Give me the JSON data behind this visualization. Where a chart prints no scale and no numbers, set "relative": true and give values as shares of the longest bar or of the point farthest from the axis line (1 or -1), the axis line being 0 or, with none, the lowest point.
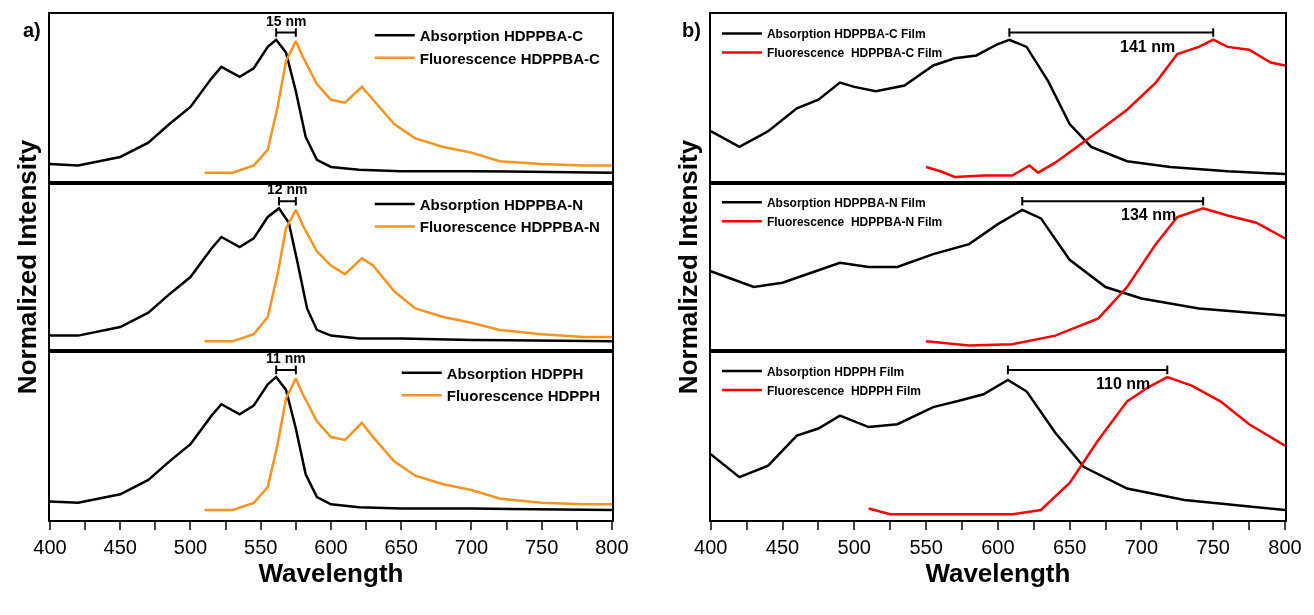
{
  "chart_data": [
    {
      "type": "line",
      "title": "a)",
      "relative": true,
      "xlim": [
        400,
        800
      ],
      "tick_labels": false,
      "legend": "top right",
      "annotations": [
        "15 nm"
      ],
      "series": [
        {
          "name": "Absorption HDPPBA-C",
          "color": "#000000",
          "x": [
            400,
            420,
            450,
            470,
            485,
            500,
            515,
            522,
            535,
            545,
            555,
            561,
            568,
            575,
            582,
            590,
            600,
            620,
            650,
            700,
            800
          ],
          "values": [
            0.13,
            0.12,
            0.18,
            0.28,
            0.41,
            0.53,
            0.73,
            0.81,
            0.74,
            0.8,
            0.95,
            1.0,
            0.91,
            0.64,
            0.32,
            0.16,
            0.11,
            0.09,
            0.08,
            0.08,
            0.07
          ]
        },
        {
          "name": "Fluorescence HDPPBA-C",
          "color": "#f7931e",
          "x": [
            510,
            530,
            545,
            555,
            562,
            568,
            575,
            580,
            590,
            600,
            610,
            622,
            630,
            645,
            660,
            680,
            700,
            720,
            750,
            780,
            800
          ],
          "values": [
            0.07,
            0.07,
            0.12,
            0.23,
            0.53,
            0.85,
            0.99,
            0.88,
            0.69,
            0.58,
            0.56,
            0.67,
            0.58,
            0.41,
            0.31,
            0.25,
            0.21,
            0.15,
            0.13,
            0.12,
            0.12
          ]
        }
      ]
    },
    {
      "type": "line",
      "relative": true,
      "xlim": [
        400,
        800
      ],
      "tick_labels": false,
      "legend": "top right",
      "ylabel": "Normalized Intensity",
      "annotations": [
        "12 nm"
      ],
      "series": [
        {
          "name": "Absorption HDPPBA-N",
          "color": "#000000",
          "x": [
            400,
            420,
            450,
            470,
            485,
            500,
            515,
            522,
            535,
            545,
            555,
            563,
            570,
            576,
            583,
            590,
            600,
            620,
            650,
            700,
            800
          ],
          "values": [
            0.11,
            0.11,
            0.17,
            0.27,
            0.4,
            0.52,
            0.72,
            0.8,
            0.73,
            0.79,
            0.94,
            1.0,
            0.9,
            0.63,
            0.3,
            0.15,
            0.11,
            0.09,
            0.09,
            0.08,
            0.07
          ]
        },
        {
          "name": "Fluorescence HDPPBA-N",
          "color": "#f7931e",
          "x": [
            510,
            530,
            545,
            555,
            562,
            568,
            575,
            580,
            590,
            600,
            610,
            622,
            630,
            645,
            660,
            680,
            700,
            720,
            750,
            780,
            800
          ],
          "values": [
            0.07,
            0.07,
            0.12,
            0.24,
            0.54,
            0.86,
            0.99,
            0.88,
            0.7,
            0.6,
            0.54,
            0.65,
            0.6,
            0.42,
            0.3,
            0.24,
            0.2,
            0.15,
            0.12,
            0.1,
            0.1
          ]
        }
      ]
    },
    {
      "type": "line",
      "relative": true,
      "xlim": [
        400,
        800
      ],
      "tick_labels": "x",
      "xticks": [
        400,
        {
          "value": 425,
          "label": null
        },
        450,
        {
          "value": 475,
          "label": null
        },
        500,
        {
          "value": 525,
          "label": null
        },
        550,
        {
          "value": 575,
          "label": null
        },
        600,
        {
          "value": 625,
          "label": null
        },
        650,
        {
          "value": 675,
          "label": null
        },
        700,
        {
          "value": 725,
          "label": null
        },
        750,
        {
          "value": 775,
          "label": null
        },
        800
      ],
      "xlabel": "Wavelength",
      "legend": "top right",
      "annotations": [
        "11 nm"
      ],
      "series": [
        {
          "name": "Absorption HDPPH",
          "color": "#000000",
          "x": [
            400,
            420,
            450,
            470,
            485,
            500,
            515,
            522,
            535,
            545,
            555,
            561,
            568,
            575,
            582,
            590,
            600,
            620,
            650,
            700,
            800
          ],
          "values": [
            0.13,
            0.12,
            0.18,
            0.28,
            0.41,
            0.53,
            0.73,
            0.81,
            0.74,
            0.8,
            0.95,
            1.0,
            0.91,
            0.64,
            0.32,
            0.16,
            0.11,
            0.09,
            0.08,
            0.08,
            0.07
          ]
        },
        {
          "name": "Fluorescence HDPPH",
          "color": "#f7931e",
          "x": [
            510,
            530,
            545,
            555,
            562,
            568,
            575,
            580,
            590,
            600,
            610,
            622,
            630,
            645,
            660,
            680,
            700,
            720,
            750,
            780,
            800
          ],
          "values": [
            0.07,
            0.07,
            0.12,
            0.23,
            0.53,
            0.85,
            0.99,
            0.88,
            0.69,
            0.58,
            0.56,
            0.68,
            0.58,
            0.41,
            0.31,
            0.25,
            0.21,
            0.15,
            0.12,
            0.11,
            0.11
          ]
        }
      ]
    },
    {
      "type": "line",
      "title": "b)",
      "relative": true,
      "xlim": [
        400,
        800
      ],
      "tick_labels": false,
      "legend": "top left",
      "annotations": [
        "141 nm"
      ],
      "series": [
        {
          "name": "Absorption HDPPBA-C Film",
          "color": "#000000",
          "x": [
            400,
            420,
            440,
            460,
            475,
            490,
            500,
            515,
            535,
            555,
            570,
            585,
            600,
            608,
            620,
            635,
            650,
            665,
            690,
            720,
            760,
            800
          ],
          "values": [
            0.36,
            0.25,
            0.36,
            0.52,
            0.58,
            0.7,
            0.67,
            0.64,
            0.68,
            0.82,
            0.87,
            0.89,
            0.97,
            1.0,
            0.95,
            0.71,
            0.41,
            0.25,
            0.15,
            0.11,
            0.08,
            0.06
          ]
        },
        {
          "name": "Fluorescence  HDPPBA-C Film",
          "color": "#ff0000",
          "x": [
            550,
            560,
            570,
            590,
            610,
            622,
            628,
            640,
            655,
            670,
            690,
            710,
            725,
            740,
            750,
            760,
            775,
            790,
            800
          ],
          "values": [
            0.11,
            0.08,
            0.04,
            0.05,
            0.05,
            0.12,
            0.07,
            0.14,
            0.25,
            0.36,
            0.51,
            0.7,
            0.9,
            0.95,
            1.0,
            0.95,
            0.93,
            0.84,
            0.82
          ]
        }
      ]
    },
    {
      "type": "line",
      "relative": true,
      "xlim": [
        400,
        800
      ],
      "tick_labels": false,
      "legend": "top left",
      "ylabel": "Normalized Intensity",
      "annotations": [
        "134 nm"
      ],
      "series": [
        {
          "name": "Absorption HDPPBA-N Film",
          "color": "#000000",
          "x": [
            400,
            430,
            450,
            470,
            490,
            510,
            530,
            555,
            580,
            600,
            617,
            630,
            650,
            675,
            700,
            740,
            800
          ],
          "values": [
            0.56,
            0.45,
            0.48,
            0.55,
            0.62,
            0.59,
            0.59,
            0.68,
            0.75,
            0.89,
            0.99,
            0.93,
            0.64,
            0.45,
            0.37,
            0.3,
            0.25
          ]
        },
        {
          "name": "Fluorescence  HDPPBA-N Film",
          "color": "#ff0000",
          "x": [
            550,
            580,
            610,
            640,
            670,
            690,
            710,
            725,
            743,
            760,
            780,
            800
          ],
          "values": [
            0.07,
            0.04,
            0.05,
            0.11,
            0.23,
            0.45,
            0.75,
            0.94,
            1.0,
            0.95,
            0.9,
            0.79
          ]
        }
      ]
    },
    {
      "type": "line",
      "relative": true,
      "xlim": [
        400,
        800
      ],
      "tick_labels": "x",
      "xticks": [
        400,
        {
          "value": 425,
          "label": null
        },
        450,
        {
          "value": 475,
          "label": null
        },
        500,
        {
          "value": 525,
          "label": null
        },
        550,
        {
          "value": 575,
          "label": null
        },
        600,
        {
          "value": 625,
          "label": null
        },
        650,
        {
          "value": 675,
          "label": null
        },
        700,
        {
          "value": 725,
          "label": null
        },
        750,
        {
          "value": 775,
          "label": null
        },
        800
      ],
      "xlabel": "Wavelength",
      "legend": "top left",
      "annotations": [
        "110 nm"
      ],
      "series": [
        {
          "name": "Absorption HDPPH Film",
          "color": "#000000",
          "x": [
            400,
            420,
            440,
            460,
            475,
            490,
            510,
            530,
            555,
            575,
            590,
            607,
            620,
            640,
            660,
            690,
            730,
            800
          ],
          "values": [
            0.46,
            0.3,
            0.38,
            0.59,
            0.64,
            0.73,
            0.65,
            0.67,
            0.79,
            0.84,
            0.88,
            0.98,
            0.9,
            0.61,
            0.37,
            0.22,
            0.14,
            0.07
          ]
        },
        {
          "name": "Fluorescence  HDPPH Film",
          "color": "#ff0000",
          "x": [
            510,
            525,
            560,
            610,
            630,
            650,
            670,
            690,
            705,
            718,
            735,
            755,
            775,
            800
          ],
          "values": [
            0.08,
            0.04,
            0.04,
            0.04,
            0.07,
            0.26,
            0.56,
            0.83,
            0.93,
            1.0,
            0.94,
            0.83,
            0.67,
            0.52
          ]
        }
      ]
    }
  ]
}
